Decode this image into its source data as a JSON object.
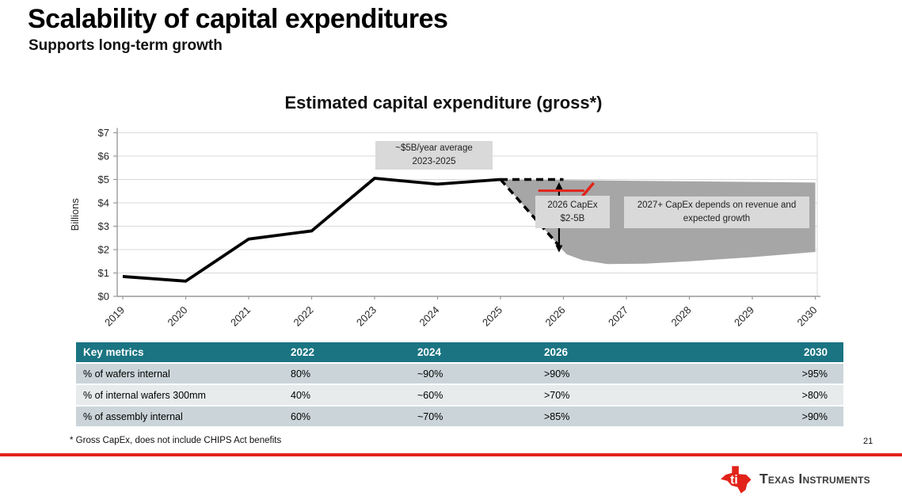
{
  "slide": {
    "title": "Scalability of capital expenditures",
    "subtitle": "Supports long-term growth",
    "footnote": "* Gross CapEx, does not include CHIPS Act benefits",
    "page_number": "21",
    "brand_name": "Texas Instruments"
  },
  "chart_data": {
    "type": "line",
    "title": "Estimated capital expenditure (gross*)",
    "ylabel": "Billions",
    "ylim": [
      0,
      7
    ],
    "grid": "horizontal",
    "legend": "none",
    "yticks": [
      "$0",
      "$1",
      "$2",
      "$3",
      "$4",
      "$5",
      "$6",
      "$7"
    ],
    "xticks": [
      "2019",
      "2020",
      "2021",
      "2022",
      "2023",
      "2024",
      "2025",
      "2026",
      "2027",
      "2028",
      "2029",
      "2030"
    ],
    "x_range": [
      2019,
      2030
    ],
    "series": [
      {
        "name": "Estimated gross capital expenditure ($B)",
        "x": [
          2019,
          2020,
          2021,
          2022,
          2023,
          2024,
          2025
        ],
        "values": [
          0.85,
          0.65,
          2.45,
          2.8,
          5.05,
          4.8,
          5.0
        ]
      }
    ],
    "projection": {
      "dashed_lines": [
        {
          "from": [
            2025,
            5.0
          ],
          "to": [
            2026,
            5.0
          ]
        },
        {
          "from": [
            2025,
            5.0
          ],
          "to": [
            2026,
            1.95
          ]
        }
      ],
      "range_area_polygon": [
        [
          2025,
          5.0
        ],
        [
          2030,
          4.87
        ],
        [
          2030,
          1.9
        ],
        [
          2029,
          1.68
        ],
        [
          2028,
          1.5
        ],
        [
          2027.3,
          1.4
        ],
        [
          2026.7,
          1.38
        ],
        [
          2026.3,
          1.55
        ],
        [
          2026.05,
          1.8
        ],
        [
          2026,
          1.95
        ]
      ],
      "range_arrow": {
        "x": 2025.93,
        "top": 4.88,
        "bottom": 1.88
      },
      "red_marker": {
        "line": [
          [
            2025.6,
            4.52
          ],
          [
            2026.33,
            4.52
          ]
        ],
        "slash": [
          [
            2026.3,
            4.28
          ],
          [
            2026.48,
            4.85
          ]
        ]
      }
    },
    "annotations": [
      {
        "id": "avg-capex",
        "lines": [
          "~$5B/year average",
          "2023-2025"
        ]
      },
      {
        "id": "capex-2026",
        "lines": [
          "2026 CapEx",
          "$2-5B"
        ]
      },
      {
        "id": "capex-2027",
        "lines": [
          "2027+ CapEx depends on revenue and",
          "expected growth"
        ]
      }
    ]
  },
  "table": {
    "headers": [
      "Key metrics",
      "2022",
      "2024",
      "2026",
      "2030"
    ],
    "rows": [
      [
        "% of wafers internal",
        "80%",
        "~90%",
        ">90%",
        ">95%"
      ],
      [
        "% of internal wafers 300mm",
        "40%",
        "~60%",
        ">70%",
        ">80%"
      ],
      [
        "% of assembly internal",
        "60%",
        "~70%",
        ">85%",
        ">90%"
      ]
    ]
  },
  "colors": {
    "header_teal": "#1A7482",
    "row_shaded": "#CBD5D9",
    "row_light": "#E7EBEC",
    "projection_gray": "#A6A6A6",
    "annotation_gray": "#D9D9D9",
    "gridline": "#D9D9D9",
    "axis": "#999999",
    "line": "#000000",
    "accent_red": "#E2231A"
  }
}
